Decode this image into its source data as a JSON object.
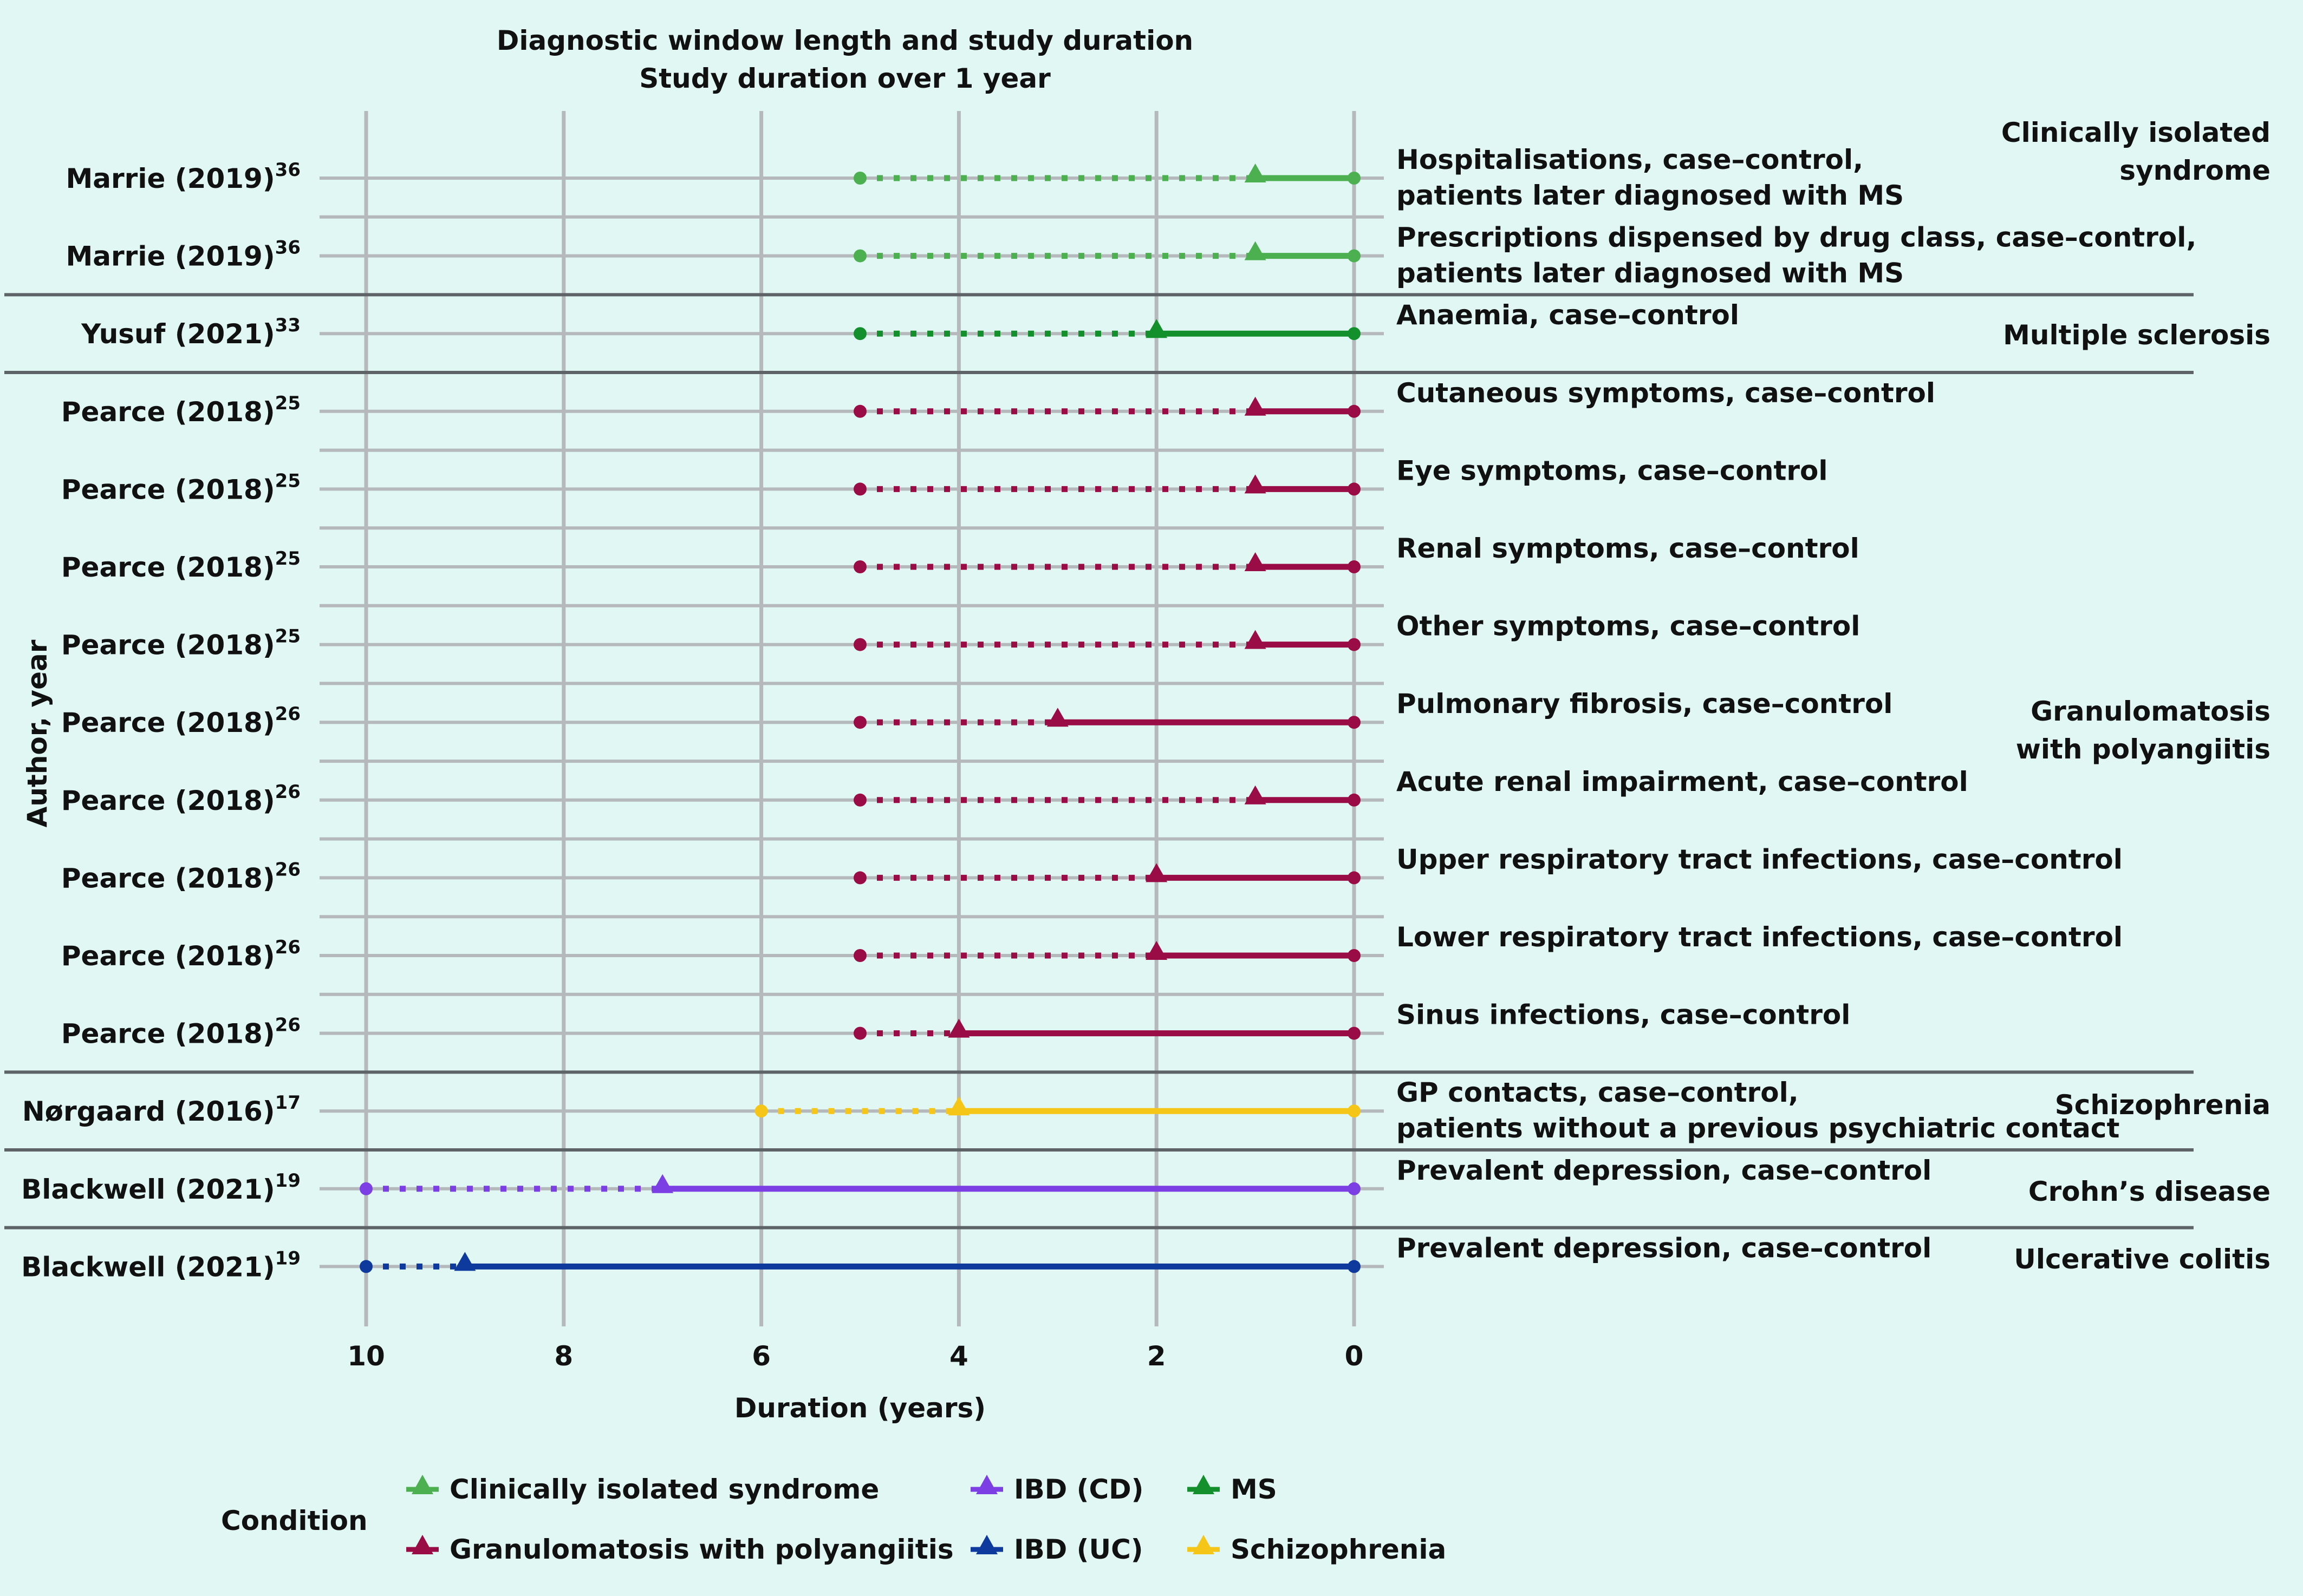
{
  "chart_data": {
    "type": "timeline",
    "title": "Diagnostic window length and study duration",
    "subtitle": "Study duration over 1 year",
    "xlabel": "Duration (years)",
    "ylabel": "Author, year",
    "xlim": [
      10,
      0
    ],
    "x_ticks": [
      "10",
      "8",
      "6",
      "4",
      "2",
      "0"
    ],
    "x_reversed": true,
    "grid": true,
    "legend_title": "Condition",
    "legend_placement": "bottom",
    "series": [
      {
        "name": "Clinically isolated syndrome",
        "color": "#4caf50"
      },
      {
        "name": "Granulomatosis with polyangiitis",
        "color": "#9a0c45"
      },
      {
        "name": "IBD (CD)",
        "color": "#7b3fe4"
      },
      {
        "name": "IBD (UC)",
        "color": "#0d3a9c"
      },
      {
        "name": "MS",
        "color": "#138f2c"
      },
      {
        "name": "Schizophrenia",
        "color": "#f5c518"
      }
    ],
    "rows": [
      {
        "author": "Marrie (2019)",
        "ref": "36",
        "label_lines": [
          "Hospitalisations, case–control,",
          "patients later diagnosed with MS"
        ],
        "series": "Clinically isolated syndrome",
        "study_start": 5,
        "window_start": 1,
        "end": 0
      },
      {
        "author": "Marrie (2019)",
        "ref": "36",
        "label_lines": [
          "Prescriptions dispensed by drug class, case–control,",
          "patients later diagnosed with MS"
        ],
        "series": "Clinically isolated syndrome",
        "study_start": 5,
        "window_start": 1,
        "end": 0
      },
      {
        "author": "Yusuf (2021)",
        "ref": "33",
        "label_lines": [
          "Anaemia, case–control"
        ],
        "series": "MS",
        "study_start": 5,
        "window_start": 2,
        "end": 0
      },
      {
        "author": "Pearce (2018)",
        "ref": "25",
        "label_lines": [
          "Cutaneous symptoms, case–control"
        ],
        "series": "Granulomatosis with polyangiitis",
        "study_start": 5,
        "window_start": 1,
        "end": 0
      },
      {
        "author": "Pearce (2018)",
        "ref": "25",
        "label_lines": [
          "Eye symptoms, case–control"
        ],
        "series": "Granulomatosis with polyangiitis",
        "study_start": 5,
        "window_start": 1,
        "end": 0
      },
      {
        "author": "Pearce (2018)",
        "ref": "25",
        "label_lines": [
          "Renal symptoms, case–control"
        ],
        "series": "Granulomatosis with polyangiitis",
        "study_start": 5,
        "window_start": 1,
        "end": 0
      },
      {
        "author": "Pearce (2018)",
        "ref": "25",
        "label_lines": [
          "Other symptoms, case–control"
        ],
        "series": "Granulomatosis with polyangiitis",
        "study_start": 5,
        "window_start": 1,
        "end": 0
      },
      {
        "author": "Pearce (2018)",
        "ref": "26",
        "label_lines": [
          "Pulmonary fibrosis, case–control"
        ],
        "series": "Granulomatosis with polyangiitis",
        "study_start": 5,
        "window_start": 3,
        "end": 0
      },
      {
        "author": "Pearce (2018)",
        "ref": "26",
        "label_lines": [
          "Acute renal impairment, case–control"
        ],
        "series": "Granulomatosis with polyangiitis",
        "study_start": 5,
        "window_start": 1,
        "end": 0
      },
      {
        "author": "Pearce (2018)",
        "ref": "26",
        "label_lines": [
          "Upper respiratory tract infections, case–control"
        ],
        "series": "Granulomatosis with polyangiitis",
        "study_start": 5,
        "window_start": 2,
        "end": 0
      },
      {
        "author": "Pearce (2018)",
        "ref": "26",
        "label_lines": [
          "Lower respiratory tract infections, case–control"
        ],
        "series": "Granulomatosis with polyangiitis",
        "study_start": 5,
        "window_start": 2,
        "end": 0
      },
      {
        "author": "Pearce (2018)",
        "ref": "26",
        "label_lines": [
          "Sinus infections, case–control"
        ],
        "series": "Granulomatosis with polyangiitis",
        "study_start": 5,
        "window_start": 4,
        "end": 0
      },
      {
        "author": "Nørgaard (2016)",
        "ref": "17",
        "label_lines": [
          "GP contacts, case–control,",
          "patients without a previous psychiatric contact"
        ],
        "series": "Schizophrenia",
        "study_start": 6,
        "window_start": 4,
        "end": 0
      },
      {
        "author": "Blackwell (2021)",
        "ref": "19",
        "label_lines": [
          "Prevalent depression, case–control"
        ],
        "series": "IBD (CD)",
        "study_start": 10,
        "window_start": 7,
        "end": 0
      },
      {
        "author": "Blackwell (2021)",
        "ref": "19",
        "label_lines": [
          "Prevalent depression, case–control"
        ],
        "series": "IBD (UC)",
        "study_start": 10,
        "window_start": 9,
        "end": 0
      }
    ],
    "groups": [
      {
        "label_lines": [
          "Clinically isolated",
          "syndrome"
        ],
        "row_from": 0,
        "row_to": 1
      },
      {
        "label_lines": [
          "Multiple sclerosis"
        ],
        "row_from": 2,
        "row_to": 2
      },
      {
        "label_lines": [
          "Granulomatosis",
          "with polyangiitis"
        ],
        "row_from": 3,
        "row_to": 11
      },
      {
        "label_lines": [
          "Schizophrenia"
        ],
        "row_from": 12,
        "row_to": 12
      },
      {
        "label_lines": [
          "Crohn’s disease"
        ],
        "row_from": 13,
        "row_to": 13
      },
      {
        "label_lines": [
          "Ulcerative colitis"
        ],
        "row_from": 14,
        "row_to": 14
      }
    ]
  }
}
